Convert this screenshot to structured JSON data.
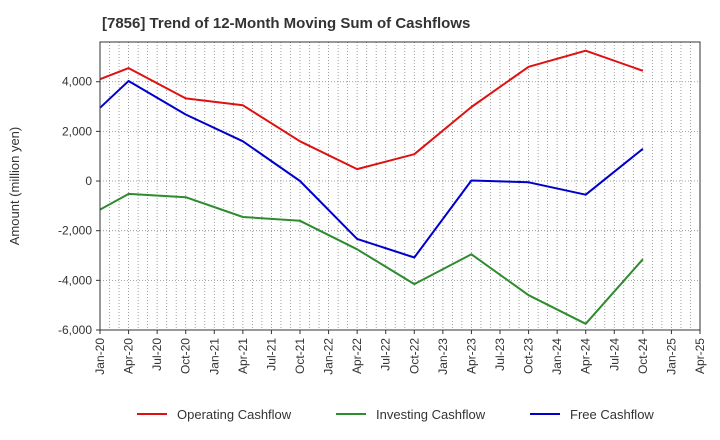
{
  "chart_data": {
    "type": "line",
    "title": "[7856]  Trend of 12-Month Moving Sum of Cashflows",
    "xlabel": "",
    "ylabel": "Amount (million yen)",
    "x": [
      "Jan-20",
      "Apr-20",
      "Jul-20",
      "Oct-20",
      "Jan-21",
      "Apr-21",
      "Jul-21",
      "Oct-21",
      "Jan-22",
      "Apr-22",
      "Jul-22",
      "Oct-22",
      "Jan-23",
      "Apr-23",
      "Jul-23",
      "Oct-23",
      "Jan-24",
      "Apr-24",
      "Jul-24",
      "Oct-24",
      "Jan-25",
      "Apr-25"
    ],
    "ylim": [
      -6000,
      5600
    ],
    "yticks": [
      -6000,
      -4000,
      -2000,
      0,
      2000,
      4000
    ],
    "ytick_labels": [
      "-6,000",
      "-4,000",
      "-2,000",
      "0",
      "2,000",
      "4,000"
    ],
    "grid": true,
    "legend_position": "bottom",
    "series": [
      {
        "name": "Operating Cashflow",
        "color": "#dd1111",
        "values": [
          4100,
          4550,
          null,
          3330,
          null,
          3050,
          null,
          1600,
          null,
          480,
          null,
          1080,
          null,
          2980,
          null,
          4600,
          null,
          5250,
          null,
          4440,
          null,
          null
        ]
      },
      {
        "name": "Investing Cashflow",
        "color": "#2e8b2e",
        "values": [
          -1150,
          -520,
          null,
          -650,
          null,
          -1450,
          null,
          -1600,
          null,
          -2750,
          null,
          -4150,
          null,
          -2950,
          null,
          -4600,
          null,
          -5750,
          null,
          -3150,
          null,
          null
        ]
      },
      {
        "name": "Free Cashflow",
        "color": "#0000cc",
        "values": [
          2950,
          4030,
          null,
          2680,
          null,
          1600,
          null,
          0,
          null,
          -2330,
          null,
          -3080,
          null,
          20,
          null,
          -50,
          null,
          -550,
          null,
          1300,
          null,
          null
        ]
      }
    ]
  }
}
